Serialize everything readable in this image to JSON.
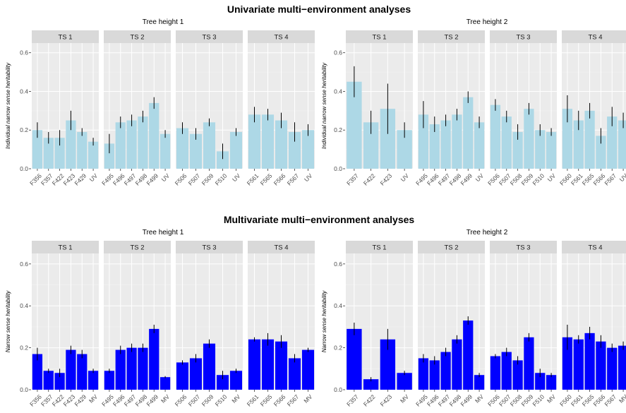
{
  "chart_data": [
    {
      "type": "bar",
      "title": "Univariate multi−environment analyses",
      "ylabel": "Individual narrow sense heritability",
      "ylim": [
        0,
        0.65
      ],
      "yticks": [
        "0.0",
        "0.2",
        "0.4",
        "0.6"
      ],
      "bar_color": "#add8e6",
      "groups": [
        {
          "title": "Tree height 1",
          "panels": [
            {
              "strip": "TS 1",
              "categories": [
                "F356",
                "F357",
                "F422",
                "F423",
                "F429",
                "UV"
              ],
              "values": [
                0.2,
                0.16,
                0.16,
                0.25,
                0.19,
                0.14
              ],
              "errors": [
                0.04,
                0.03,
                0.04,
                0.05,
                0.02,
                0.02
              ]
            },
            {
              "strip": "TS 2",
              "categories": [
                "F495",
                "F496",
                "F497",
                "F498",
                "F499",
                "UV"
              ],
              "values": [
                0.13,
                0.24,
                0.25,
                0.27,
                0.34,
                0.18
              ],
              "errors": [
                0.05,
                0.03,
                0.03,
                0.03,
                0.03,
                0.02
              ]
            },
            {
              "strip": "TS 3",
              "categories": [
                "F506",
                "F507",
                "F509",
                "F510",
                "UV"
              ],
              "values": [
                0.21,
                0.18,
                0.24,
                0.09,
                0.19
              ],
              "errors": [
                0.03,
                0.03,
                0.02,
                0.04,
                0.02
              ]
            },
            {
              "strip": "TS 4",
              "categories": [
                "F561",
                "F565",
                "F566",
                "F567",
                "UV"
              ],
              "values": [
                0.28,
                0.28,
                0.25,
                0.19,
                0.2
              ],
              "errors": [
                0.04,
                0.03,
                0.04,
                0.05,
                0.03
              ]
            }
          ]
        },
        {
          "title": "Tree height 2",
          "panels": [
            {
              "strip": "TS 1",
              "categories": [
                "F357",
                "F422",
                "F423",
                "UV"
              ],
              "values": [
                0.45,
                0.24,
                0.31,
                0.2
              ],
              "errors": [
                0.08,
                0.06,
                0.13,
                0.04
              ]
            },
            {
              "strip": "TS 2",
              "categories": [
                "F495",
                "F496",
                "F497",
                "F498",
                "F499",
                "UV"
              ],
              "values": [
                0.28,
                0.23,
                0.25,
                0.28,
                0.37,
                0.24
              ],
              "errors": [
                0.07,
                0.04,
                0.03,
                0.03,
                0.03,
                0.03
              ]
            },
            {
              "strip": "TS 3",
              "categories": [
                "F506",
                "F507",
                "F508",
                "F509",
                "F510",
                "UV"
              ],
              "values": [
                0.33,
                0.27,
                0.19,
                0.31,
                0.2,
                0.19
              ],
              "errors": [
                0.03,
                0.03,
                0.04,
                0.03,
                0.03,
                0.02
              ]
            },
            {
              "strip": "TS 4",
              "categories": [
                "F560",
                "F561",
                "F565",
                "F566",
                "F567",
                "UV"
              ],
              "values": [
                0.31,
                0.25,
                0.3,
                0.17,
                0.27,
                0.25
              ],
              "errors": [
                0.07,
                0.05,
                0.04,
                0.04,
                0.05,
                0.04
              ]
            }
          ]
        }
      ]
    },
    {
      "type": "bar",
      "title": "Multivariate multi−environment analyses",
      "ylabel": "Narrow sense heritability",
      "ylim": [
        0,
        0.65
      ],
      "yticks": [
        "0.0",
        "0.2",
        "0.4",
        "0.6"
      ],
      "bar_color": "#0000ff",
      "groups": [
        {
          "title": "Tree height 1",
          "panels": [
            {
              "strip": "TS 1",
              "categories": [
                "F356",
                "F357",
                "F422",
                "F423",
                "F429",
                "MV"
              ],
              "values": [
                0.17,
                0.09,
                0.08,
                0.19,
                0.17,
                0.09
              ],
              "errors": [
                0.03,
                0.01,
                0.02,
                0.02,
                0.02,
                0.01
              ]
            },
            {
              "strip": "TS 2",
              "categories": [
                "F495",
                "F496",
                "F497",
                "F498",
                "F499",
                "MV"
              ],
              "values": [
                0.09,
                0.19,
                0.2,
                0.2,
                0.29,
                0.06
              ],
              "errors": [
                0.01,
                0.02,
                0.02,
                0.02,
                0.02,
                0.005
              ]
            },
            {
              "strip": "TS 3",
              "categories": [
                "F506",
                "F507",
                "F509",
                "F510",
                "MV"
              ],
              "values": [
                0.13,
                0.15,
                0.22,
                0.07,
                0.09
              ],
              "errors": [
                0.01,
                0.02,
                0.02,
                0.02,
                0.01
              ]
            },
            {
              "strip": "TS 4",
              "categories": [
                "F561",
                "F565",
                "F566",
                "F567",
                "MV"
              ],
              "values": [
                0.24,
                0.24,
                0.23,
                0.15,
                0.19
              ],
              "errors": [
                0.01,
                0.03,
                0.03,
                0.02,
                0.01
              ]
            }
          ]
        },
        {
          "title": "Tree height 2",
          "panels": [
            {
              "strip": "TS 1",
              "categories": [
                "F357",
                "F422",
                "F423",
                "MV"
              ],
              "values": [
                0.29,
                0.05,
                0.24,
                0.08
              ],
              "errors": [
                0.03,
                0.01,
                0.05,
                0.01
              ]
            },
            {
              "strip": "TS 2",
              "categories": [
                "F495",
                "F496",
                "F497",
                "F498",
                "F499",
                "MV"
              ],
              "values": [
                0.15,
                0.14,
                0.18,
                0.24,
                0.33,
                0.07
              ],
              "errors": [
                0.02,
                0.02,
                0.02,
                0.02,
                0.02,
                0.01
              ]
            },
            {
              "strip": "TS 3",
              "categories": [
                "F506",
                "F507",
                "F508",
                "F509",
                "F510",
                "MV"
              ],
              "values": [
                0.16,
                0.18,
                0.14,
                0.25,
                0.08,
                0.07
              ],
              "errors": [
                0.01,
                0.02,
                0.02,
                0.02,
                0.02,
                0.01
              ]
            },
            {
              "strip": "TS 4",
              "categories": [
                "F560",
                "F561",
                "F565",
                "F566",
                "F567",
                "MV"
              ],
              "values": [
                0.25,
                0.24,
                0.27,
                0.23,
                0.2,
                0.21
              ],
              "errors": [
                0.06,
                0.02,
                0.03,
                0.03,
                0.02,
                0.02
              ]
            }
          ]
        }
      ]
    }
  ]
}
